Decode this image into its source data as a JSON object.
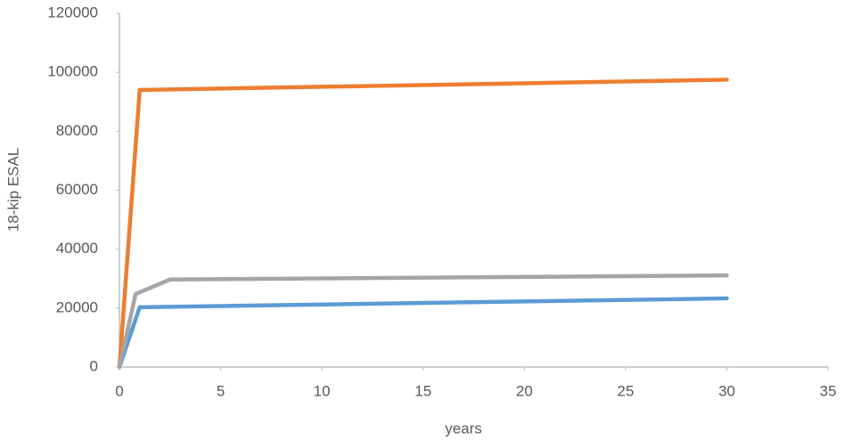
{
  "chart_data": {
    "type": "line",
    "xlabel": "years",
    "ylabel": "18-kip ESAL",
    "xlim": [
      0,
      35
    ],
    "xticks": [
      0,
      5,
      10,
      15,
      20,
      25,
      30,
      35
    ],
    "ylim": [
      0,
      120000
    ],
    "yticks": [
      0,
      20000,
      40000,
      60000,
      80000,
      100000,
      120000
    ],
    "grid": false,
    "series": [
      {
        "color": "#5b9bd5",
        "x": [
          0,
          1,
          30
        ],
        "values": [
          0,
          20300,
          23300
        ]
      },
      {
        "color": "#ed7d31",
        "x": [
          0,
          1,
          30
        ],
        "values": [
          0,
          94000,
          97500
        ]
      },
      {
        "color": "#a5a5a5",
        "x": [
          0,
          0.8,
          2.5,
          30
        ],
        "values": [
          0,
          24800,
          29700,
          31100
        ]
      }
    ]
  }
}
